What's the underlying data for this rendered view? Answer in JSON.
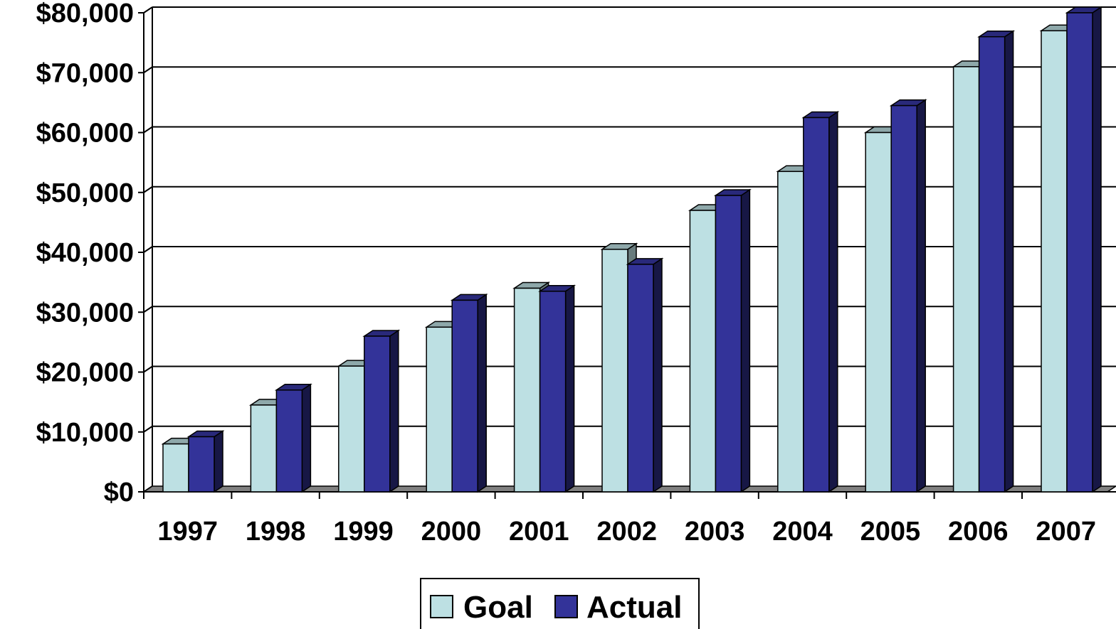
{
  "chart_data": {
    "type": "bar",
    "categories": [
      "1997",
      "1998",
      "1999",
      "2000",
      "2001",
      "2002",
      "2003",
      "2004",
      "2005",
      "2006",
      "2007"
    ],
    "series": [
      {
        "name": "Goal",
        "color": "#bde0e3",
        "values": [
          8000,
          14500,
          21000,
          27500,
          34000,
          40500,
          47000,
          53500,
          60000,
          71000,
          77000
        ]
      },
      {
        "name": "Actual",
        "color": "#333399",
        "values": [
          9200,
          17000,
          26000,
          32000,
          33500,
          38000,
          49500,
          62500,
          64500,
          76000,
          80000
        ]
      }
    ],
    "ylim": [
      0,
      80000
    ],
    "y_ticks": [
      "$0",
      "$10,000",
      "$20,000",
      "$30,000",
      "$40,000",
      "$50,000",
      "$60,000",
      "$70,000",
      "$80,000"
    ],
    "grid": true,
    "style": "3d-clustered-column",
    "legend": {
      "position": "bottom",
      "labels": [
        "Goal",
        "Actual"
      ]
    },
    "title": "",
    "xlabel": "",
    "ylabel": ""
  }
}
